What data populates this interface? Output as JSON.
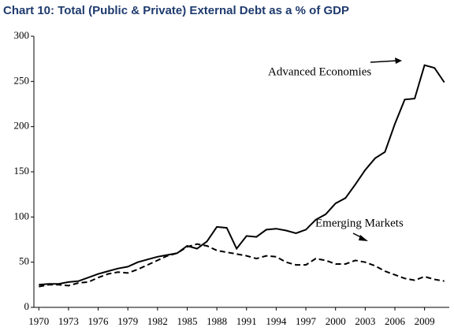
{
  "chart_data": {
    "type": "line",
    "title": "Chart 10:  Total (Public & Private) External Debt as a % of GDP",
    "x": [
      1970,
      1971,
      1972,
      1973,
      1974,
      1975,
      1976,
      1977,
      1978,
      1979,
      1980,
      1981,
      1982,
      1983,
      1984,
      1985,
      1986,
      1987,
      1988,
      1989,
      1990,
      1991,
      1992,
      1993,
      1994,
      1995,
      1996,
      1997,
      1998,
      1999,
      2000,
      2001,
      2002,
      2003,
      2004,
      2005,
      2006,
      2007,
      2008,
      2009,
      2010,
      2011
    ],
    "series": [
      {
        "name": "Advanced Economies",
        "color": "#000000",
        "dash": false,
        "values": [
          25,
          26,
          26,
          28,
          29,
          33,
          37,
          40,
          43,
          45,
          50,
          53,
          56,
          58,
          60,
          68,
          65,
          73,
          89,
          88,
          65,
          79,
          78,
          86,
          87,
          85,
          82,
          86,
          97,
          103,
          115,
          121,
          136,
          152,
          165,
          172,
          203,
          230,
          231,
          268,
          265,
          249
        ]
      },
      {
        "name": "Emerging Markets",
        "color": "#000000",
        "dash": true,
        "values": [
          23,
          25,
          25,
          24,
          27,
          28,
          33,
          37,
          39,
          38,
          42,
          47,
          52,
          57,
          60,
          67,
          70,
          68,
          63,
          61,
          59,
          57,
          54,
          57,
          56,
          50,
          47,
          47,
          54,
          52,
          48,
          48,
          52,
          50,
          46,
          40,
          36,
          32,
          30,
          34,
          31,
          29
        ]
      }
    ],
    "xlim": [
      1969.5,
      2011.5
    ],
    "xticks": [
      1970,
      1973,
      1976,
      1979,
      1982,
      1985,
      1988,
      1991,
      1994,
      1997,
      2000,
      2003,
      2006,
      2009
    ],
    "ylim": [
      0,
      300
    ],
    "yticks": [
      0,
      50,
      100,
      150,
      200,
      250,
      300
    ],
    "grid": false
  }
}
